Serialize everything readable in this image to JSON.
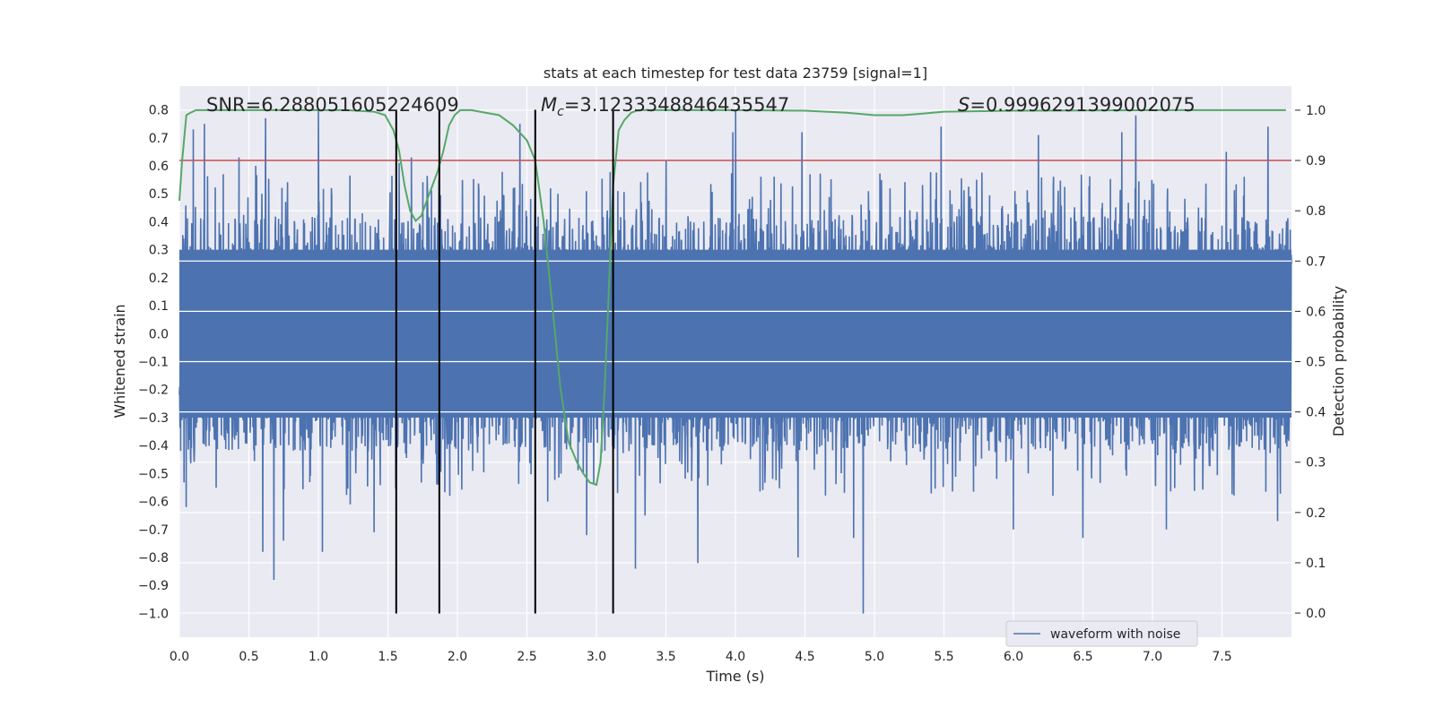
{
  "chart_data": {
    "type": "line",
    "title": "stats at each timestep for test data 23759 [signal=1]",
    "xlabel": "Time (s)",
    "ylabel": "Whitened strain",
    "y2label": "Detection probability",
    "xlim": [
      0.0,
      8.0
    ],
    "ylim": [
      -1.085,
      0.885
    ],
    "y2lim": [
      -0.048,
      1.048
    ],
    "x_ticks": [
      "0.0",
      "0.5",
      "1.0",
      "1.5",
      "2.0",
      "2.5",
      "3.0",
      "3.5",
      "4.0",
      "4.5",
      "5.0",
      "5.5",
      "6.0",
      "6.5",
      "7.0",
      "7.5"
    ],
    "y_ticks": [
      "0.8",
      "0.7",
      "0.6",
      "0.5",
      "0.4",
      "0.3",
      "0.2",
      "0.1",
      "0.0",
      "−0.1",
      "−0.2",
      "−0.3",
      "−0.4",
      "−0.5",
      "−0.6",
      "−0.7",
      "−0.8",
      "−0.9",
      "−1.0"
    ],
    "y2_ticks": [
      "1.0",
      "0.9",
      "0.8",
      "0.7",
      "0.6",
      "0.5",
      "0.4",
      "0.3",
      "0.2",
      "0.1",
      "0.0"
    ],
    "grid": true,
    "legend": {
      "entries": [
        "waveform with noise"
      ],
      "placement": "lower-right"
    },
    "annotations": {
      "snr": "SNR=6.288051605224609",
      "mc_symbol": "M",
      "mc_subscript": "c",
      "mc_value": "=3.1233348846435547",
      "s_symbol": "S",
      "s_value": "=0.9996291399002075"
    },
    "series": [
      {
        "name": "waveform with noise",
        "axis": "left",
        "color": "#4c72b0",
        "t_start": 0.0,
        "t_end": 8.0,
        "typical_band": [
          -0.3,
          0.3
        ],
        "spikes": [
          {
            "t": 0.1,
            "v": 0.73
          },
          {
            "t": 0.18,
            "v": 0.75
          },
          {
            "t": 0.43,
            "v": 0.63
          },
          {
            "t": 0.55,
            "v": 0.6
          },
          {
            "t": 0.62,
            "v": 0.77
          },
          {
            "t": 1.0,
            "v": 0.8
          },
          {
            "t": 1.58,
            "v": 0.61
          },
          {
            "t": 1.67,
            "v": 0.63
          },
          {
            "t": 2.45,
            "v": 0.75
          },
          {
            "t": 3.5,
            "v": 0.62
          },
          {
            "t": 3.98,
            "v": 0.72
          },
          {
            "t": 4.0,
            "v": 0.8
          },
          {
            "t": 4.48,
            "v": 0.72
          },
          {
            "t": 5.48,
            "v": 0.74
          },
          {
            "t": 6.18,
            "v": 0.71
          },
          {
            "t": 6.78,
            "v": 0.72
          },
          {
            "t": 6.88,
            "v": 0.78
          },
          {
            "t": 7.53,
            "v": 0.65
          },
          {
            "t": 7.83,
            "v": 0.74
          },
          {
            "t": 0.05,
            "v": -0.62
          },
          {
            "t": 0.6,
            "v": -0.78
          },
          {
            "t": 0.68,
            "v": -0.88
          },
          {
            "t": 0.75,
            "v": -0.74
          },
          {
            "t": 1.03,
            "v": -0.78
          },
          {
            "t": 1.23,
            "v": -0.61
          },
          {
            "t": 1.4,
            "v": -0.71
          },
          {
            "t": 2.65,
            "v": -0.6
          },
          {
            "t": 2.93,
            "v": -0.72
          },
          {
            "t": 3.28,
            "v": -0.84
          },
          {
            "t": 3.35,
            "v": -0.65
          },
          {
            "t": 3.73,
            "v": -0.82
          },
          {
            "t": 4.45,
            "v": -0.8
          },
          {
            "t": 4.85,
            "v": -0.73
          },
          {
            "t": 4.92,
            "v": -1.0
          },
          {
            "t": 6.0,
            "v": -0.7
          },
          {
            "t": 6.5,
            "v": -0.73
          },
          {
            "t": 7.1,
            "v": -0.7
          },
          {
            "t": 7.9,
            "v": -0.67
          }
        ]
      },
      {
        "name": "detection probability",
        "axis": "right",
        "color": "#55a868",
        "x": [
          0.0,
          0.02,
          0.05,
          0.08,
          0.12,
          0.2,
          0.4,
          0.8,
          1.2,
          1.4,
          1.48,
          1.54,
          1.58,
          1.62,
          1.66,
          1.7,
          1.74,
          1.78,
          1.82,
          1.86,
          1.9,
          1.94,
          1.98,
          2.02,
          2.1,
          2.3,
          2.4,
          2.5,
          2.56,
          2.62,
          2.68,
          2.74,
          2.8,
          2.86,
          2.9,
          2.95,
          3.0,
          3.03,
          3.06,
          3.09,
          3.12,
          3.16,
          3.2,
          3.25,
          3.3,
          3.4,
          3.6,
          4.0,
          4.5,
          4.8,
          5.0,
          5.1,
          5.2,
          5.3,
          5.5,
          6.0,
          7.0,
          7.96
        ],
        "y": [
          0.82,
          0.9,
          0.99,
          0.995,
          1.0,
          1.0,
          1.0,
          1.0,
          1.0,
          0.997,
          0.99,
          0.96,
          0.92,
          0.85,
          0.8,
          0.78,
          0.79,
          0.82,
          0.85,
          0.88,
          0.92,
          0.97,
          0.99,
          1.0,
          1.0,
          0.99,
          0.97,
          0.94,
          0.9,
          0.78,
          0.62,
          0.45,
          0.34,
          0.3,
          0.28,
          0.26,
          0.255,
          0.3,
          0.45,
          0.65,
          0.85,
          0.96,
          0.98,
          0.995,
          1.0,
          1.0,
          1.0,
          1.0,
          0.999,
          0.995,
          0.99,
          0.99,
          0.99,
          0.992,
          0.997,
          0.999,
          1.0,
          1.0
        ]
      }
    ],
    "threshold": {
      "axis": "right",
      "value": 0.9,
      "color": "#c44e52"
    },
    "vertical_lines": [
      1.56,
      1.87,
      2.56,
      3.12
    ]
  }
}
